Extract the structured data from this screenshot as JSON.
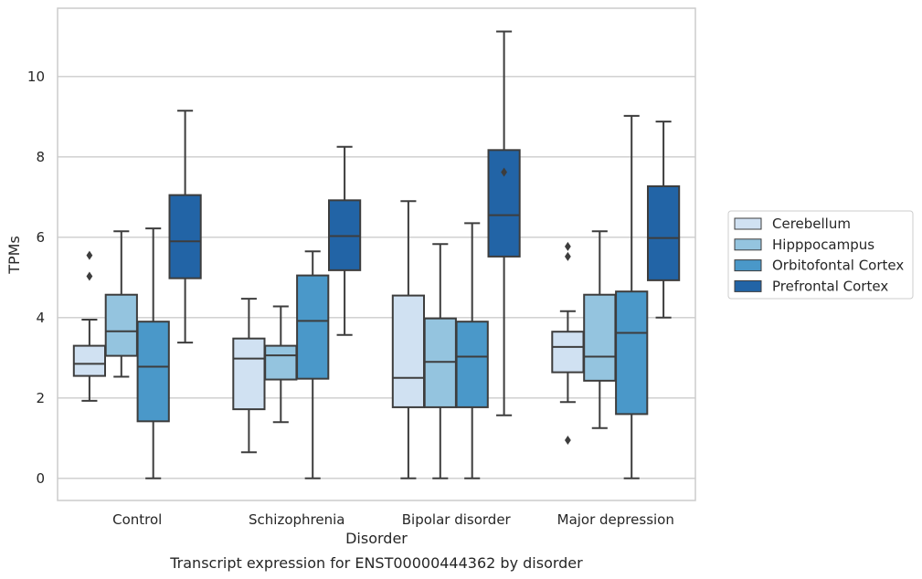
{
  "chart_data": {
    "type": "box",
    "caption": "Transcript expression for ENST00000444362 by disorder",
    "xlabel": "Disorder",
    "ylabel": "TPMs",
    "ylim": [
      -0.55,
      11.7
    ],
    "yticks": [
      0,
      2,
      4,
      6,
      8,
      10
    ],
    "grid": "horizontal",
    "legend_position": "right",
    "categories": [
      "Control",
      "Schizophrenia",
      "Bipolar disorder",
      "Major depression"
    ],
    "series": [
      {
        "name": "Cerebellum",
        "color": "#d0e1f2",
        "boxes": [
          {
            "whisker_low": 1.93,
            "q1": 2.55,
            "median": 2.85,
            "q3": 3.3,
            "whisker_high": 3.95,
            "outliers": [
              5.03,
              5.55
            ]
          },
          {
            "whisker_low": 0.65,
            "q1": 1.72,
            "median": 2.98,
            "q3": 3.48,
            "whisker_high": 4.47,
            "outliers": []
          },
          {
            "whisker_low": 0.0,
            "q1": 1.77,
            "median": 2.5,
            "q3": 4.55,
            "whisker_high": 6.9,
            "outliers": []
          },
          {
            "whisker_low": 1.9,
            "q1": 2.64,
            "median": 3.27,
            "q3": 3.65,
            "whisker_high": 4.16,
            "outliers": [
              0.95,
              5.52,
              5.77
            ]
          }
        ]
      },
      {
        "name": "Hipppocampus",
        "color": "#94c4df",
        "boxes": [
          {
            "whisker_low": 2.53,
            "q1": 3.05,
            "median": 3.66,
            "q3": 4.57,
            "whisker_high": 6.15,
            "outliers": []
          },
          {
            "whisker_low": 1.4,
            "q1": 2.46,
            "median": 3.06,
            "q3": 3.3,
            "whisker_high": 4.28,
            "outliers": []
          },
          {
            "whisker_low": 0.0,
            "q1": 1.77,
            "median": 2.9,
            "q3": 3.98,
            "whisker_high": 5.83,
            "outliers": []
          },
          {
            "whisker_low": 1.25,
            "q1": 2.43,
            "median": 3.03,
            "q3": 4.57,
            "whisker_high": 6.15,
            "outliers": []
          }
        ]
      },
      {
        "name": "Orbitofontal Cortex",
        "color": "#4a98c9",
        "boxes": [
          {
            "whisker_low": 0.0,
            "q1": 1.42,
            "median": 2.78,
            "q3": 3.9,
            "whisker_high": 6.22,
            "outliers": []
          },
          {
            "whisker_low": 0.0,
            "q1": 2.48,
            "median": 3.92,
            "q3": 5.05,
            "whisker_high": 5.65,
            "outliers": []
          },
          {
            "whisker_low": 0.0,
            "q1": 1.77,
            "median": 3.03,
            "q3": 3.9,
            "whisker_high": 6.35,
            "outliers": []
          },
          {
            "whisker_low": 0.0,
            "q1": 1.6,
            "median": 3.62,
            "q3": 4.65,
            "whisker_high": 9.02,
            "outliers": []
          }
        ]
      },
      {
        "name": "Prefrontal Cortex",
        "color": "#2264a6",
        "boxes": [
          {
            "whisker_low": 3.38,
            "q1": 4.98,
            "median": 5.9,
            "q3": 7.05,
            "whisker_high": 9.15,
            "outliers": []
          },
          {
            "whisker_low": 3.57,
            "q1": 5.18,
            "median": 6.03,
            "q3": 6.92,
            "whisker_high": 8.25,
            "outliers": []
          },
          {
            "whisker_low": 1.57,
            "q1": 5.52,
            "median": 6.55,
            "q3": 8.17,
            "whisker_high": 11.12,
            "outliers": [
              7.62
            ]
          },
          {
            "whisker_low": 4.0,
            "q1": 4.93,
            "median": 5.98,
            "q3": 7.27,
            "whisker_high": 8.88,
            "outliers": []
          }
        ]
      }
    ]
  }
}
